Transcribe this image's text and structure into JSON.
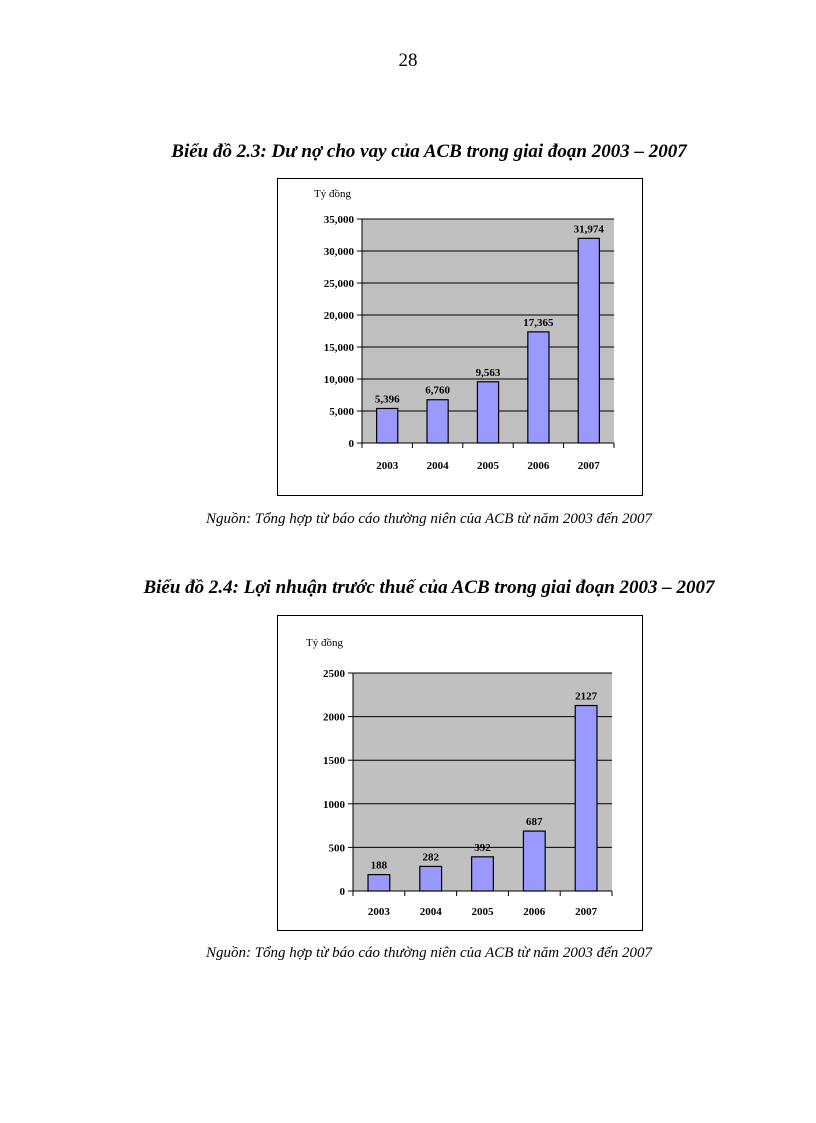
{
  "page_number": "28",
  "charts_meta": [
    {
      "title": "Biểu đồ 2.3: Dư nợ cho vay của ACB trong giai đoạn 2003 – 2007",
      "source": "Nguồn: Tổng hợp từ báo cáo thường niên của ACB từ  năm 2003 đến 2007"
    },
    {
      "title": "Biểu đồ 2.4: Lợi nhuận trước thuế của ACB trong giai đoạn 2003 – 2007",
      "source": "Nguồn: Tổng hợp từ báo cáo thường niên của ACB từ  năm 2003 đến 2007"
    }
  ],
  "colors": {
    "bar": "#9999ff",
    "plot_bg": "#c0c0c0",
    "grid": "#000000"
  },
  "chart_data": [
    {
      "type": "bar",
      "title": "Biểu đồ 2.3: Dư nợ cho vay của ACB trong giai đoạn 2003 – 2007",
      "ylabel": "Tỷ đồng",
      "xlabel": "",
      "categories": [
        "2003",
        "2004",
        "2005",
        "2006",
        "2007"
      ],
      "values": [
        5396,
        6760,
        9563,
        17365,
        31974
      ],
      "value_labels": [
        "5,396",
        "6,760",
        "9,563",
        "17,365",
        "31,974"
      ],
      "ylim": [
        0,
        35000
      ],
      "yticks": [
        0,
        5000,
        10000,
        15000,
        20000,
        25000,
        30000,
        35000
      ],
      "ytick_labels": [
        "0",
        "5,000",
        "10,000",
        "15,000",
        "20,000",
        "25,000",
        "30,000",
        "35,000"
      ],
      "grid": true
    },
    {
      "type": "bar",
      "title": "Biểu đồ 2.4: Lợi nhuận trước thuế của ACB trong giai đoạn 2003 – 2007",
      "ylabel": "Tỷ đồng",
      "xlabel": "",
      "categories": [
        "2003",
        "2004",
        "2005",
        "2006",
        "2007"
      ],
      "values": [
        188,
        282,
        392,
        687,
        2127
      ],
      "value_labels": [
        "188",
        "282",
        "392",
        "687",
        "2127"
      ],
      "ylim": [
        0,
        2500
      ],
      "yticks": [
        0,
        500,
        1000,
        1500,
        2000,
        2500
      ],
      "ytick_labels": [
        "0",
        "500",
        "1000",
        "1500",
        "2000",
        "2500"
      ],
      "grid": true
    }
  ]
}
